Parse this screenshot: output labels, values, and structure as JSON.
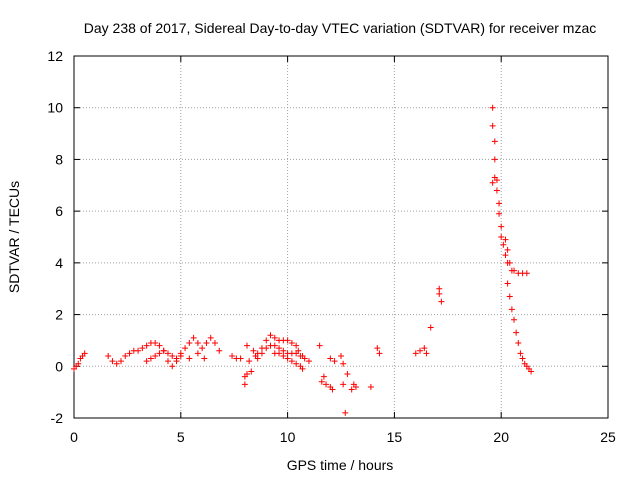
{
  "chart_data": {
    "type": "scatter",
    "title": "Day 238 of 2017, Sidereal Day-to-day VTEC variation (SDTVAR) for receiver mzac",
    "xlabel": "GPS time / hours",
    "ylabel": "SDTVAR / TECUs",
    "xlim": [
      0,
      25
    ],
    "ylim": [
      -2,
      12
    ],
    "xticks": [
      0,
      5,
      10,
      15,
      20,
      25
    ],
    "yticks": [
      -2,
      0,
      2,
      4,
      6,
      8,
      10,
      12
    ],
    "xtick_labels": [
      "0",
      "5",
      "10",
      "15",
      "20",
      "25"
    ],
    "ytick_labels": [
      "-2",
      "0",
      "2",
      "4",
      "6",
      "8",
      "10",
      "12"
    ],
    "grid": true,
    "marker": "+",
    "series": [
      {
        "name": "SDTVAR",
        "color": "#ff0000",
        "points": [
          [
            0.0,
            -0.1
          ],
          [
            0.1,
            0.0
          ],
          [
            0.2,
            0.1
          ],
          [
            0.3,
            0.3
          ],
          [
            0.4,
            0.4
          ],
          [
            0.5,
            0.5
          ],
          [
            1.6,
            0.4
          ],
          [
            1.8,
            0.2
          ],
          [
            2.0,
            0.1
          ],
          [
            2.2,
            0.2
          ],
          [
            2.4,
            0.4
          ],
          [
            2.6,
            0.5
          ],
          [
            2.8,
            0.6
          ],
          [
            3.0,
            0.6
          ],
          [
            3.2,
            0.7
          ],
          [
            3.4,
            0.8
          ],
          [
            3.6,
            0.9
          ],
          [
            3.8,
            0.9
          ],
          [
            4.0,
            0.8
          ],
          [
            4.2,
            0.6
          ],
          [
            3.4,
            0.2
          ],
          [
            3.6,
            0.3
          ],
          [
            3.8,
            0.4
          ],
          [
            4.0,
            0.5
          ],
          [
            4.2,
            0.6
          ],
          [
            4.4,
            0.5
          ],
          [
            4.6,
            0.4
          ],
          [
            4.8,
            0.3
          ],
          [
            5.0,
            0.5
          ],
          [
            5.2,
            0.7
          ],
          [
            5.4,
            0.9
          ],
          [
            5.6,
            1.1
          ],
          [
            5.8,
            0.9
          ],
          [
            6.0,
            0.7
          ],
          [
            6.2,
            0.9
          ],
          [
            6.4,
            1.1
          ],
          [
            6.6,
            0.9
          ],
          [
            6.8,
            0.6
          ],
          [
            4.4,
            0.2
          ],
          [
            4.6,
            0.0
          ],
          [
            4.8,
            0.2
          ],
          [
            5.0,
            0.4
          ],
          [
            5.4,
            0.3
          ],
          [
            5.8,
            0.5
          ],
          [
            6.1,
            0.3
          ],
          [
            7.4,
            0.4
          ],
          [
            7.6,
            0.3
          ],
          [
            7.8,
            0.3
          ],
          [
            8.0,
            -0.7
          ],
          [
            8.0,
            -0.4
          ],
          [
            8.1,
            0.8
          ],
          [
            8.1,
            -0.3
          ],
          [
            8.2,
            0.2
          ],
          [
            8.3,
            -0.2
          ],
          [
            8.4,
            0.6
          ],
          [
            8.5,
            0.4
          ],
          [
            8.6,
            0.5
          ],
          [
            8.8,
            0.7
          ],
          [
            9.0,
            1.0
          ],
          [
            9.2,
            1.2
          ],
          [
            9.4,
            1.1
          ],
          [
            9.6,
            1.0
          ],
          [
            9.8,
            1.0
          ],
          [
            10.0,
            1.0
          ],
          [
            10.2,
            0.9
          ],
          [
            10.4,
            0.8
          ],
          [
            8.6,
            0.3
          ],
          [
            8.8,
            0.5
          ],
          [
            9.0,
            0.7
          ],
          [
            9.2,
            0.8
          ],
          [
            9.4,
            0.8
          ],
          [
            9.6,
            0.7
          ],
          [
            9.8,
            0.6
          ],
          [
            10.0,
            0.5
          ],
          [
            10.2,
            0.5
          ],
          [
            10.4,
            0.5
          ],
          [
            10.6,
            0.4
          ],
          [
            10.8,
            0.3
          ],
          [
            11.0,
            0.2
          ],
          [
            9.4,
            0.5
          ],
          [
            9.6,
            0.5
          ],
          [
            9.8,
            0.4
          ],
          [
            10.0,
            0.3
          ],
          [
            10.2,
            0.2
          ],
          [
            10.4,
            0.1
          ],
          [
            10.6,
            0.0
          ],
          [
            10.7,
            -0.1
          ],
          [
            10.5,
            0.6
          ],
          [
            10.7,
            0.4
          ],
          [
            11.5,
            0.8
          ],
          [
            11.6,
            -0.6
          ],
          [
            11.8,
            -0.7
          ],
          [
            12.0,
            -0.8
          ],
          [
            12.1,
            -0.9
          ],
          [
            11.7,
            -0.4
          ],
          [
            12.0,
            0.3
          ],
          [
            12.2,
            0.2
          ],
          [
            12.5,
            0.4
          ],
          [
            12.6,
            0.1
          ],
          [
            12.6,
            -0.7
          ],
          [
            12.8,
            -0.3
          ],
          [
            12.7,
            -1.8
          ],
          [
            13.0,
            -0.9
          ],
          [
            13.1,
            -0.7
          ],
          [
            13.2,
            -0.8
          ],
          [
            13.9,
            -0.8
          ],
          [
            14.2,
            0.7
          ],
          [
            14.3,
            0.5
          ],
          [
            16.0,
            0.5
          ],
          [
            16.2,
            0.6
          ],
          [
            16.4,
            0.7
          ],
          [
            16.5,
            0.5
          ],
          [
            16.7,
            1.5
          ],
          [
            17.1,
            3.0
          ],
          [
            17.1,
            2.8
          ],
          [
            17.2,
            2.5
          ],
          [
            19.6,
            10.0
          ],
          [
            19.6,
            9.3
          ],
          [
            19.7,
            8.7
          ],
          [
            19.7,
            8.0
          ],
          [
            19.7,
            7.3
          ],
          [
            19.6,
            7.1
          ],
          [
            19.8,
            7.2
          ],
          [
            19.8,
            6.8
          ],
          [
            19.9,
            6.3
          ],
          [
            19.9,
            5.9
          ],
          [
            20.0,
            5.4
          ],
          [
            20.0,
            5.0
          ],
          [
            20.1,
            4.7
          ],
          [
            20.2,
            4.9
          ],
          [
            20.3,
            4.5
          ],
          [
            20.3,
            4.0
          ],
          [
            20.2,
            4.3
          ],
          [
            20.4,
            4.0
          ],
          [
            20.5,
            3.7
          ],
          [
            20.6,
            3.7
          ],
          [
            20.8,
            3.6
          ],
          [
            21.0,
            3.6
          ],
          [
            21.2,
            3.6
          ],
          [
            20.3,
            3.2
          ],
          [
            20.4,
            2.7
          ],
          [
            20.5,
            2.2
          ],
          [
            20.6,
            1.8
          ],
          [
            20.7,
            1.3
          ],
          [
            20.8,
            0.9
          ],
          [
            20.9,
            0.5
          ],
          [
            21.0,
            0.3
          ],
          [
            21.1,
            0.1
          ],
          [
            21.2,
            0.0
          ],
          [
            21.3,
            -0.1
          ],
          [
            21.4,
            -0.2
          ]
        ]
      }
    ]
  }
}
